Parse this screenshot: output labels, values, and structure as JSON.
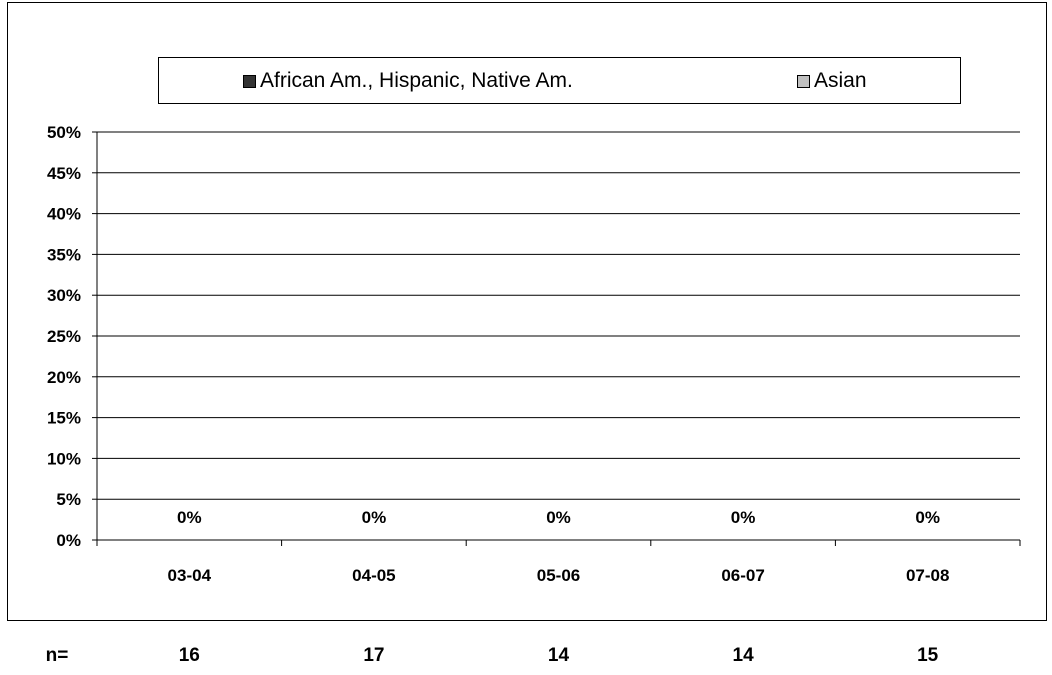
{
  "chart_data": {
    "type": "bar",
    "categories": [
      "03-04",
      "04-05",
      "05-06",
      "06-07",
      "07-08"
    ],
    "series": [
      {
        "name": "African Am., Hispanic, Native Am.",
        "color": "#333333",
        "values": [
          0,
          0,
          0,
          0,
          0
        ]
      },
      {
        "name": "Asian",
        "color": "#c0c0c0",
        "values": [
          0,
          0,
          0,
          0,
          0
        ]
      }
    ],
    "data_labels": [
      "0%",
      "0%",
      "0%",
      "0%",
      "0%"
    ],
    "ylim": [
      0,
      50
    ],
    "y_ticks": [
      "0%",
      "5%",
      "10%",
      "15%",
      "20%",
      "25%",
      "30%",
      "35%",
      "40%",
      "45%",
      "50%"
    ],
    "grid": true,
    "legend_position": "top"
  },
  "counts": {
    "label": "n=",
    "values": [
      "16",
      "17",
      "14",
      "14",
      "15"
    ]
  }
}
